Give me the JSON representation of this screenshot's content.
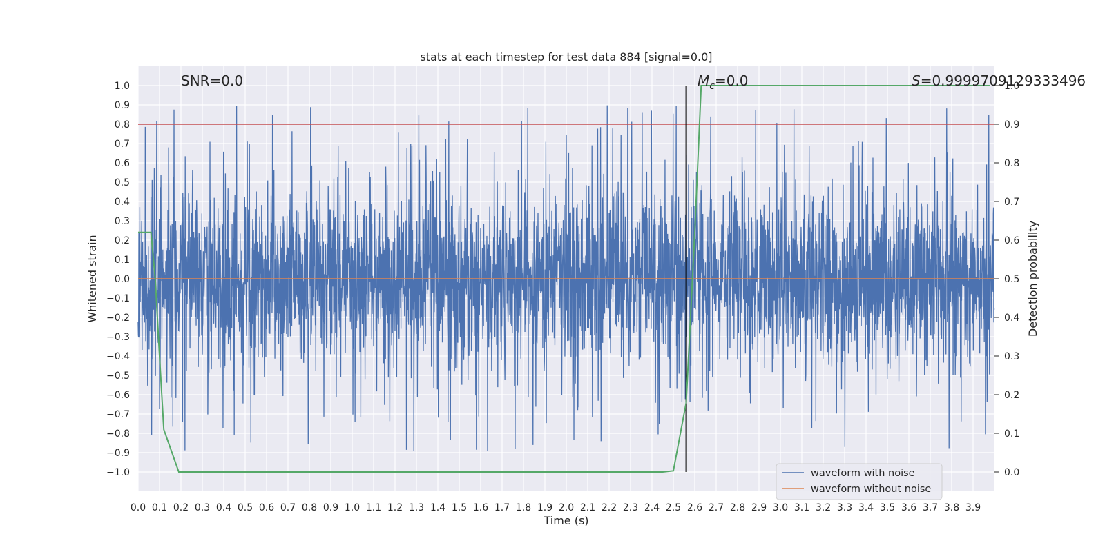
{
  "chart_data": {
    "type": "line",
    "title": "stats at each timestep for test data 884 [signal=0.0]",
    "xlabel": "Time (s)",
    "ylabel": "Whitened strain",
    "y2label": "Detection probability",
    "xlim": [
      0.0,
      4.0
    ],
    "ylim": [
      -1.1,
      1.1
    ],
    "y2lim": [
      -0.05,
      1.05
    ],
    "xticks": [
      0.0,
      0.1,
      0.2,
      0.3,
      0.4,
      0.5,
      0.6,
      0.7,
      0.8,
      0.9,
      1.0,
      1.1,
      1.2,
      1.3,
      1.4,
      1.5,
      1.6,
      1.7,
      1.8,
      1.9,
      2.0,
      2.1,
      2.2,
      2.3,
      2.4,
      2.5,
      2.6,
      2.7,
      2.8,
      2.9,
      3.0,
      3.1,
      3.2,
      3.3,
      3.4,
      3.5,
      3.6,
      3.7,
      3.8,
      3.9
    ],
    "yticks": [
      -1.0,
      -0.9,
      -0.8,
      -0.7,
      -0.6,
      -0.5,
      -0.4,
      -0.3,
      -0.2,
      -0.1,
      0.0,
      0.1,
      0.2,
      0.3,
      0.4,
      0.5,
      0.6,
      0.7,
      0.8,
      0.9,
      1.0
    ],
    "y2ticks": [
      0.0,
      0.1,
      0.2,
      0.3,
      0.4,
      0.5,
      0.6,
      0.7,
      0.8,
      0.9,
      1.0
    ],
    "grid": true,
    "legend_position": "bottom-right",
    "annotations": {
      "snr": "SNR=0.0",
      "mc_symbol": "M",
      "mc_sub": "c",
      "mc_value": "=0.0",
      "s_symbol": "S",
      "s_value": "=0.9999709129333496"
    },
    "series": [
      {
        "name": "waveform with noise",
        "color": "#4c72b0",
        "kind": "noise",
        "amplitude_range": [
          -1.0,
          1.0
        ]
      },
      {
        "name": "waveform without noise",
        "color": "#dd8452",
        "y": 0.0
      }
    ],
    "threshold_line": {
      "y2": 0.9,
      "color": "#c44e52"
    },
    "event_marker": {
      "x": 2.56,
      "color": "#000000"
    },
    "detection_probability": {
      "color": "#55a868",
      "x": [
        0.0,
        0.06,
        0.08,
        0.1,
        0.12,
        0.19,
        0.2,
        2.4,
        2.45,
        2.5,
        2.56,
        2.6,
        2.63,
        2.65,
        3.98
      ],
      "y": [
        0.62,
        0.62,
        0.5,
        0.3,
        0.11,
        0.0,
        0.0,
        0.0,
        0.0,
        0.003,
        0.18,
        0.62,
        1.0,
        1.0,
        1.0
      ]
    }
  },
  "colors": {
    "background": "#eaeaf2",
    "grid": "#ffffff",
    "text": "#262626"
  }
}
